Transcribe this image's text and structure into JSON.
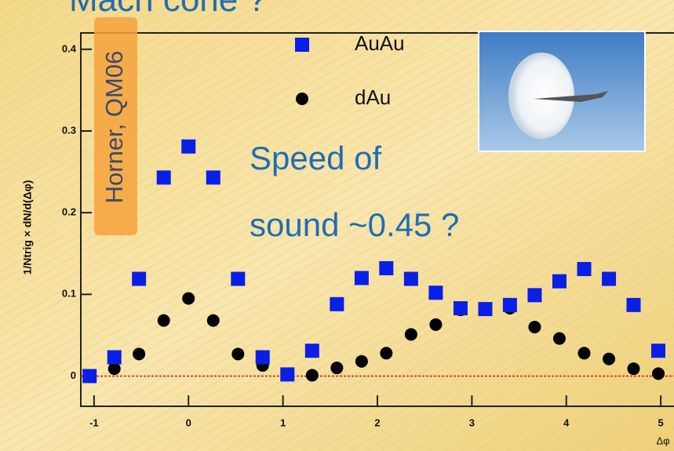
{
  "title": "Mach cone ?",
  "source_note": "Horner, QM06",
  "annotation": [
    "Speed of",
    "sound ~0.45 ?"
  ],
  "chart_data": {
    "type": "scatter",
    "x_label": "Δφ",
    "y_label": "1/Ntrig × dN/d(Δφ)",
    "x": [
      -1.047,
      -0.785,
      -0.524,
      -0.262,
      0,
      0.262,
      0.524,
      0.785,
      1.047,
      1.309,
      1.571,
      1.833,
      2.094,
      2.356,
      2.618,
      2.88,
      3.142,
      3.403,
      3.665,
      3.927,
      4.189,
      4.451,
      4.712,
      4.974
    ],
    "series": [
      {
        "name": "AuAu",
        "color": "#0a1fe6",
        "marker": "square",
        "values": [
          0.0,
          0.023,
          0.119,
          0.243,
          0.281,
          0.243,
          0.119,
          0.023,
          0.002,
          0.031,
          0.088,
          0.12,
          0.132,
          0.119,
          0.102,
          0.083,
          0.082,
          0.087,
          0.099,
          0.116,
          0.131,
          0.119,
          0.087,
          0.031
        ]
      },
      {
        "name": "dAu",
        "color": "#000000",
        "marker": "circle",
        "values": [
          0.0,
          0.009,
          0.027,
          0.068,
          0.095,
          0.068,
          0.027,
          0.013,
          0.001,
          0.001,
          0.01,
          0.018,
          0.028,
          0.051,
          0.063,
          0.081,
          0.083,
          0.083,
          0.06,
          0.046,
          0.028,
          0.021,
          0.009,
          0.003
        ]
      }
    ],
    "xlim": [
      -1.14,
      5.14
    ],
    "ylim": [
      -0.037,
      0.42
    ],
    "xticks": [
      -1,
      0,
      1,
      2,
      3,
      4,
      5
    ],
    "yticks": [
      0,
      0.1,
      0.2,
      0.3,
      0.4
    ]
  }
}
